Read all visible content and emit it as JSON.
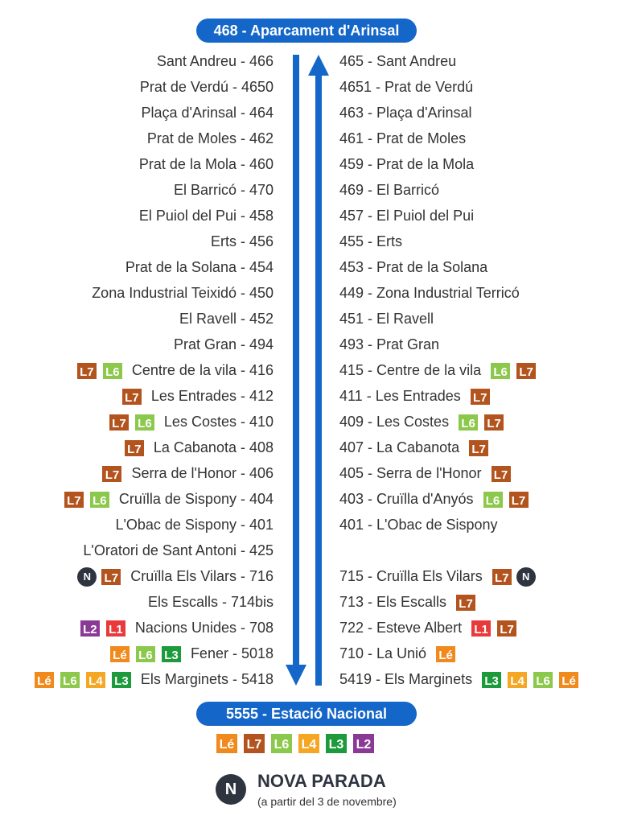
{
  "colors": {
    "L7": "#b3541e",
    "L6": "#8cc84b",
    "L3": "#1c9a3c",
    "L4": "#f5a623",
    "Lé": "#f08a1d",
    "L1": "#e8393b",
    "L2": "#8a3a96",
    "N": "#2e3440"
  },
  "top_terminal": "468 - Aparcament d'Arinsal",
  "bottom_terminal": "5555 - Estació Nacional",
  "left_stops": [
    {
      "name": "Sant Andreu - 466",
      "lines": []
    },
    {
      "name": "Prat de Verdú - 4650",
      "lines": []
    },
    {
      "name": "Plaça d'Arinsal - 464",
      "lines": []
    },
    {
      "name": "Prat de Moles - 462",
      "lines": []
    },
    {
      "name": "Prat de la Mola - 460",
      "lines": []
    },
    {
      "name": "El Barricó - 470",
      "lines": []
    },
    {
      "name": "El Puiol del Pui - 458",
      "lines": []
    },
    {
      "name": "Erts - 456",
      "lines": []
    },
    {
      "name": "Prat de la Solana - 454",
      "lines": []
    },
    {
      "name": "Zona Industrial Teixidó - 450",
      "lines": []
    },
    {
      "name": "El Ravell - 452",
      "lines": []
    },
    {
      "name": "Prat Gran - 494",
      "lines": []
    },
    {
      "name": "Centre de la vila - 416",
      "lines": [
        "L7",
        "L6"
      ]
    },
    {
      "name": "Les Entrades - 412",
      "lines": [
        "L7"
      ]
    },
    {
      "name": "Les Costes - 410",
      "lines": [
        "L7",
        "L6"
      ]
    },
    {
      "name": "La Cabanota - 408",
      "lines": [
        "L7"
      ]
    },
    {
      "name": "Serra de l'Honor - 406",
      "lines": [
        "L7"
      ]
    },
    {
      "name": "Cruïlla de Sispony - 404",
      "lines": [
        "L7",
        "L6"
      ]
    },
    {
      "name": "L'Obac de Sispony - 401",
      "lines": []
    },
    {
      "name": "L'Oratori de Sant Antoni - 425",
      "lines": []
    },
    {
      "name": "Cruïlla Els Vilars - 716",
      "lines": [
        "N",
        "L7"
      ]
    },
    {
      "name": "Els Escalls - 714bis",
      "lines": []
    },
    {
      "name": "Nacions Unides - 708",
      "lines": [
        "L2",
        "L1"
      ]
    },
    {
      "name": "Fener - 5018",
      "lines": [
        "Lé",
        "L6",
        "L3"
      ]
    },
    {
      "name": "Els Marginets - 5418",
      "lines": [
        "Lé",
        "L6",
        "L4",
        "L3"
      ]
    }
  ],
  "right_stops": [
    {
      "name": "465 - Sant Andreu",
      "lines": []
    },
    {
      "name": "4651 - Prat de Verdú",
      "lines": []
    },
    {
      "name": "463 - Plaça d'Arinsal",
      "lines": []
    },
    {
      "name": "461 - Prat de Moles",
      "lines": []
    },
    {
      "name": "459 - Prat de la Mola",
      "lines": []
    },
    {
      "name": "469 - El Barricó",
      "lines": []
    },
    {
      "name": "457 - El Puiol del Pui",
      "lines": []
    },
    {
      "name": "455 - Erts",
      "lines": []
    },
    {
      "name": "453 - Prat de la Solana",
      "lines": []
    },
    {
      "name": "449 - Zona Industrial Terricó",
      "lines": []
    },
    {
      "name": "451 - El Ravell",
      "lines": []
    },
    {
      "name": "493 - Prat Gran",
      "lines": []
    },
    {
      "name": "415 - Centre de la vila",
      "lines": [
        "L6",
        "L7"
      ]
    },
    {
      "name": "411 - Les Entrades",
      "lines": [
        "L7"
      ]
    },
    {
      "name": "409 - Les Costes",
      "lines": [
        "L6",
        "L7"
      ]
    },
    {
      "name": "407 - La Cabanota",
      "lines": [
        "L7"
      ]
    },
    {
      "name": "405 - Serra de l'Honor",
      "lines": [
        "L7"
      ]
    },
    {
      "name": "403 - Cruïlla d'Anyós",
      "lines": [
        "L6",
        "L7"
      ]
    },
    {
      "name": "401 - L'Obac de Sispony",
      "lines": []
    },
    {
      "name": "",
      "lines": []
    },
    {
      "name": "715 - Cruïlla Els Vilars",
      "lines": [
        "L7",
        "N"
      ]
    },
    {
      "name": "713 - Els Escalls",
      "lines": [
        "L7"
      ]
    },
    {
      "name": "722 - Esteve Albert",
      "lines": [
        "L1",
        "L7"
      ]
    },
    {
      "name": "710 - La Unió",
      "lines": [
        "Lé"
      ]
    },
    {
      "name": "5419 - Els Marginets",
      "lines": [
        "L3",
        "L4",
        "L6",
        "Lé"
      ]
    }
  ],
  "bottom_lines": [
    "Lé",
    "L7",
    "L6",
    "L4",
    "L3",
    "L2"
  ],
  "legend": {
    "icon": "N",
    "title": "NOVA PARADA",
    "subtitle": "(a partir del 3 de novembre)"
  }
}
